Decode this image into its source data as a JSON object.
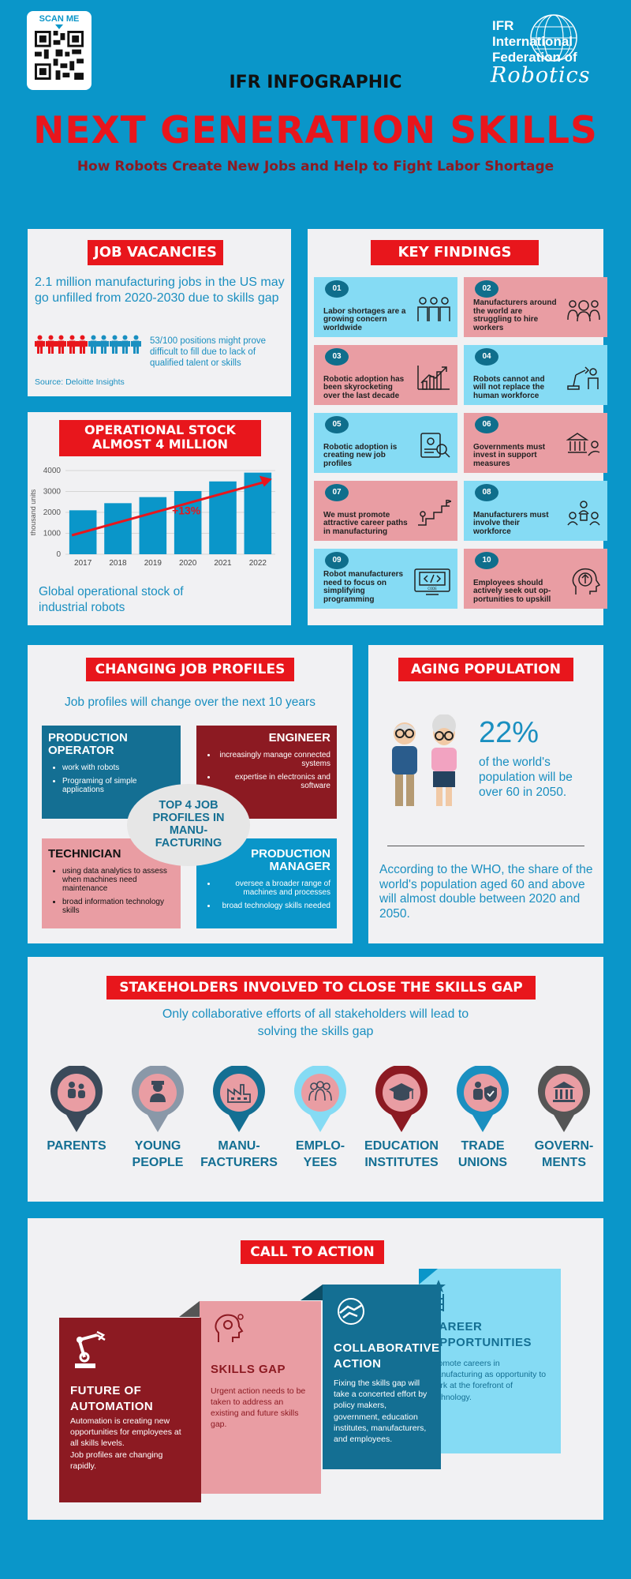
{
  "header": {
    "scan_label": "SCAN ME",
    "infographic_label": "IFR INFOGRAPHIC",
    "logo_lines": [
      "IFR",
      "International",
      "Federation of"
    ],
    "logo_script": "Robotics",
    "title": "NEXT GENERATION SKILLS",
    "subtitle": "How Robots Create New Jobs and Help to Fight Labor Shortage"
  },
  "job_vacancies": {
    "tag": "JOB VACANCIES",
    "main_text": "2.1 million manufacturing jobs in the US may go unfilled from 2020-2030 due to skills gap",
    "stat_text": "53/100 positions might prove difficult to fill due to lack of qualified talent or skills",
    "source": "Source: Deloitte Insights",
    "people_red": 5,
    "people_blue": 5
  },
  "operational_stock": {
    "tag_line1": "OPERATIONAL STOCK",
    "tag_line2": "ALMOST 4 MILLION",
    "caption": "Global operational stock of industrial robots",
    "growth_label": "+13%"
  },
  "chart_data": {
    "type": "bar",
    "categories": [
      "2017",
      "2018",
      "2019",
      "2020",
      "2021",
      "2022"
    ],
    "values": [
      2100,
      2440,
      2730,
      3020,
      3480,
      3900
    ],
    "ylabel": "thousand units",
    "yticks": [
      "0",
      "1000",
      "2000",
      "3000",
      "4000"
    ],
    "ylim": [
      0,
      4000
    ],
    "annotation": "+13%"
  },
  "key_findings": {
    "tag": "KEY FINDINGS",
    "items": [
      {
        "num": "01",
        "text": "Labor shortages are a growing concern worldwide",
        "color": "blue",
        "icon": "people-icon"
      },
      {
        "num": "02",
        "text": "Manufacturers around the world are struggling to hire workers",
        "color": "pink",
        "icon": "workers-icon"
      },
      {
        "num": "03",
        "text": "Robotic adoption has been skyrocketing over the last decade",
        "color": "pink",
        "icon": "growth-chart-icon"
      },
      {
        "num": "04",
        "text": "Robots cannot and will not replace the human workforce",
        "color": "blue",
        "icon": "robot-arm-icon"
      },
      {
        "num": "05",
        "text": "Robotic adoption is creating new job profiles",
        "color": "blue",
        "icon": "job-profile-icon"
      },
      {
        "num": "06",
        "text": "Governments must invest in support measures",
        "color": "pink",
        "icon": "government-icon"
      },
      {
        "num": "07",
        "text": "We must promote attractive career paths in manufacturing",
        "color": "pink",
        "icon": "career-stairs-icon"
      },
      {
        "num": "08",
        "text": "Manufacturers must involve their workforce",
        "color": "blue",
        "icon": "team-icon"
      },
      {
        "num": "09",
        "text": "Robot manufacturers need to focus on simplifying programming",
        "color": "blue",
        "icon": "code-monitor-icon"
      },
      {
        "num": "10",
        "text": "Employees should actively seek out op-portunities to upskill",
        "color": "pink",
        "icon": "upskill-head-icon"
      }
    ]
  },
  "job_profiles": {
    "tag": "CHANGING JOB PROFILES",
    "intro": "Job profiles will change over the next 10 years",
    "center": "TOP 4 JOB PROFILES IN MANU-FACTURING",
    "operator": {
      "title": "PRODUCTION OPERATOR",
      "bullets": [
        "work with robots",
        "Programing of simple applications"
      ]
    },
    "engineer": {
      "title": "ENGINEER",
      "bullets": [
        "increasingly manage connected systems",
        "expertise in electronics and software"
      ]
    },
    "technician": {
      "title": "TECHNICIAN",
      "bullets": [
        "using data analytics  to assess when machines need maintenance",
        "broad information technology skills"
      ]
    },
    "manager": {
      "title": "PRODUCTION MANAGER",
      "bullets": [
        "oversee a broader range of machines and processes",
        "broad technology skills needed"
      ]
    }
  },
  "aging": {
    "tag": "AGING POPULATION",
    "percent": "22%",
    "percent_text": "of the world's population will be over 60 in 2050.",
    "who_text": "According to the WHO, the share of the world's population aged 60 and above will almost double between 2020 and 2050."
  },
  "stakeholders": {
    "tag": "STAKEHOLDERS INVOLVED TO CLOSE THE SKILLS GAP",
    "intro_line1": "Only collaborative efforts of all stakeholders will lead to",
    "intro_line2": "solving the skills gap",
    "items": [
      {
        "line1": "PARENTS",
        "line2": "",
        "ring": "#3b4a5a",
        "icon": "parents-icon"
      },
      {
        "line1": "YOUNG",
        "line2": "PEOPLE",
        "ring": "#8a98a8",
        "icon": "young-people-icon"
      },
      {
        "line1": "MANU-",
        "line2": "FACTURERS",
        "ring": "#146f93",
        "icon": "factory-icon"
      },
      {
        "line1": "EMPLO-",
        "line2": "YEES",
        "ring": "#85dbf4",
        "icon": "employees-icon"
      },
      {
        "line1": "EDUCATION",
        "line2": "INSTITUTES",
        "ring": "#8c1a22",
        "icon": "graduation-cap-icon"
      },
      {
        "line1": "TRADE",
        "line2": "UNIONS",
        "ring": "#1a8fc0",
        "icon": "union-shield-icon"
      },
      {
        "line1": "GOVERN-",
        "line2": "MENTS",
        "ring": "#555555",
        "icon": "government-building-icon"
      }
    ]
  },
  "call_to_action": {
    "tag": "CALL TO ACTION",
    "future": {
      "title_line1": "FUTURE OF",
      "title_line2": "AUTOMATION",
      "text": "Automation is creating new opportunities for employees at all skills levels.",
      "text2": "Job profiles are changing rapidly."
    },
    "skills": {
      "title": "SKILLS GAP",
      "text": "Urgent action needs to be taken to address an existing and future skills gap."
    },
    "collab": {
      "title_line1": "COLLABORATIVE",
      "title_line2": "ACTION",
      "text": "Fixing the skills gap will take a concerted effort by policy makers, government, education institutes, manufacturers, and employees."
    },
    "career": {
      "title_line1": "CAREER",
      "title_line2": "OPPORTUNITIES",
      "text": "Promote careers in manufacturing as opportunity to work at the forefront of technology."
    }
  },
  "colors": {
    "background": "#0a96c9",
    "red": "#e8161c",
    "dark_red": "#8c1a22",
    "pink": "#e99da3",
    "light_blue": "#85dbf4",
    "teal": "#146f93"
  }
}
